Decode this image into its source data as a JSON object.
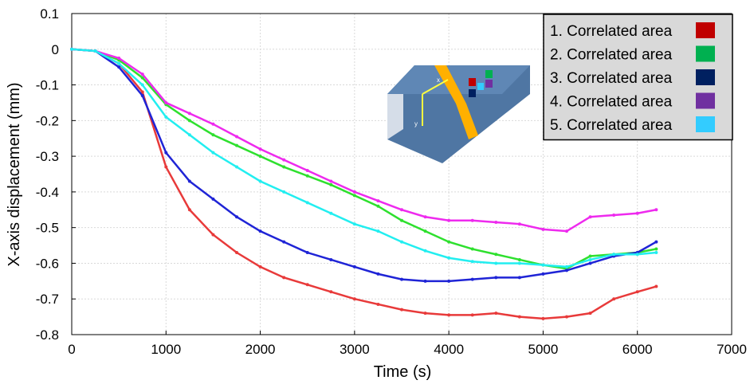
{
  "chart_data": {
    "type": "line",
    "x_label": "Time (s)",
    "y_label": "X-axis displacement (mm)",
    "annotations": [
      "x",
      "y"
    ],
    "xlim": [
      0,
      7000
    ],
    "xticks": [
      0,
      1000,
      2000,
      3000,
      4000,
      5000,
      6000,
      7000
    ],
    "ylim": [
      -0.8,
      0.1
    ],
    "yticks": [
      0.1,
      0,
      -0.1,
      -0.2,
      -0.3,
      -0.4,
      -0.5,
      -0.6,
      -0.7,
      -0.8
    ],
    "grid": true,
    "legend": "top-right",
    "x": [
      0,
      250,
      500,
      750,
      1000,
      1250,
      1500,
      1750,
      2000,
      2250,
      2500,
      2750,
      3000,
      3250,
      3500,
      3750,
      4000,
      4250,
      4500,
      4750,
      5000,
      5250,
      5500,
      5750,
      6000,
      6200
    ],
    "series": [
      {
        "name": "1. Correlated area",
        "color": "#c00000",
        "line_color": "#e83a3a",
        "values": [
          0,
          -0.005,
          -0.04,
          -0.12,
          -0.33,
          -0.45,
          -0.52,
          -0.57,
          -0.61,
          -0.64,
          -0.66,
          -0.68,
          -0.7,
          -0.715,
          -0.73,
          -0.74,
          -0.745,
          -0.745,
          -0.74,
          -0.75,
          -0.755,
          -0.75,
          -0.74,
          -0.7,
          -0.68,
          -0.665
        ]
      },
      {
        "name": "2. Correlated area",
        "color": "#00b050",
        "line_color": "#2ee02e",
        "values": [
          0,
          -0.005,
          -0.03,
          -0.08,
          -0.155,
          -0.2,
          -0.24,
          -0.27,
          -0.3,
          -0.33,
          -0.355,
          -0.38,
          -0.41,
          -0.44,
          -0.48,
          -0.51,
          -0.54,
          -0.56,
          -0.575,
          -0.59,
          -0.605,
          -0.615,
          -0.58,
          -0.575,
          -0.57,
          -0.56
        ]
      },
      {
        "name": "3. Correlated area",
        "color": "#002060",
        "line_color": "#1f24d6",
        "values": [
          0,
          -0.005,
          -0.05,
          -0.13,
          -0.29,
          -0.37,
          -0.42,
          -0.47,
          -0.51,
          -0.54,
          -0.57,
          -0.59,
          -0.61,
          -0.63,
          -0.645,
          -0.65,
          -0.65,
          -0.645,
          -0.64,
          -0.64,
          -0.63,
          -0.62,
          -0.6,
          -0.58,
          -0.57,
          -0.54
        ]
      },
      {
        "name": "4. Correlated area",
        "color": "#7030a0",
        "line_color": "#ee2aee",
        "values": [
          0,
          -0.005,
          -0.025,
          -0.07,
          -0.15,
          -0.18,
          -0.21,
          -0.245,
          -0.28,
          -0.31,
          -0.34,
          -0.37,
          -0.4,
          -0.425,
          -0.45,
          -0.47,
          -0.48,
          -0.48,
          -0.485,
          -0.49,
          -0.505,
          -0.51,
          -0.47,
          -0.465,
          -0.46,
          -0.45
        ]
      },
      {
        "name": "5. Correlated area",
        "color": "#33ccff",
        "line_color": "#22eef0",
        "values": [
          0,
          -0.005,
          -0.04,
          -0.1,
          -0.19,
          -0.24,
          -0.29,
          -0.33,
          -0.37,
          -0.4,
          -0.43,
          -0.46,
          -0.49,
          -0.51,
          -0.54,
          -0.565,
          -0.585,
          -0.595,
          -0.6,
          -0.6,
          -0.605,
          -0.61,
          -0.59,
          -0.575,
          -0.575,
          -0.57
        ]
      }
    ]
  }
}
